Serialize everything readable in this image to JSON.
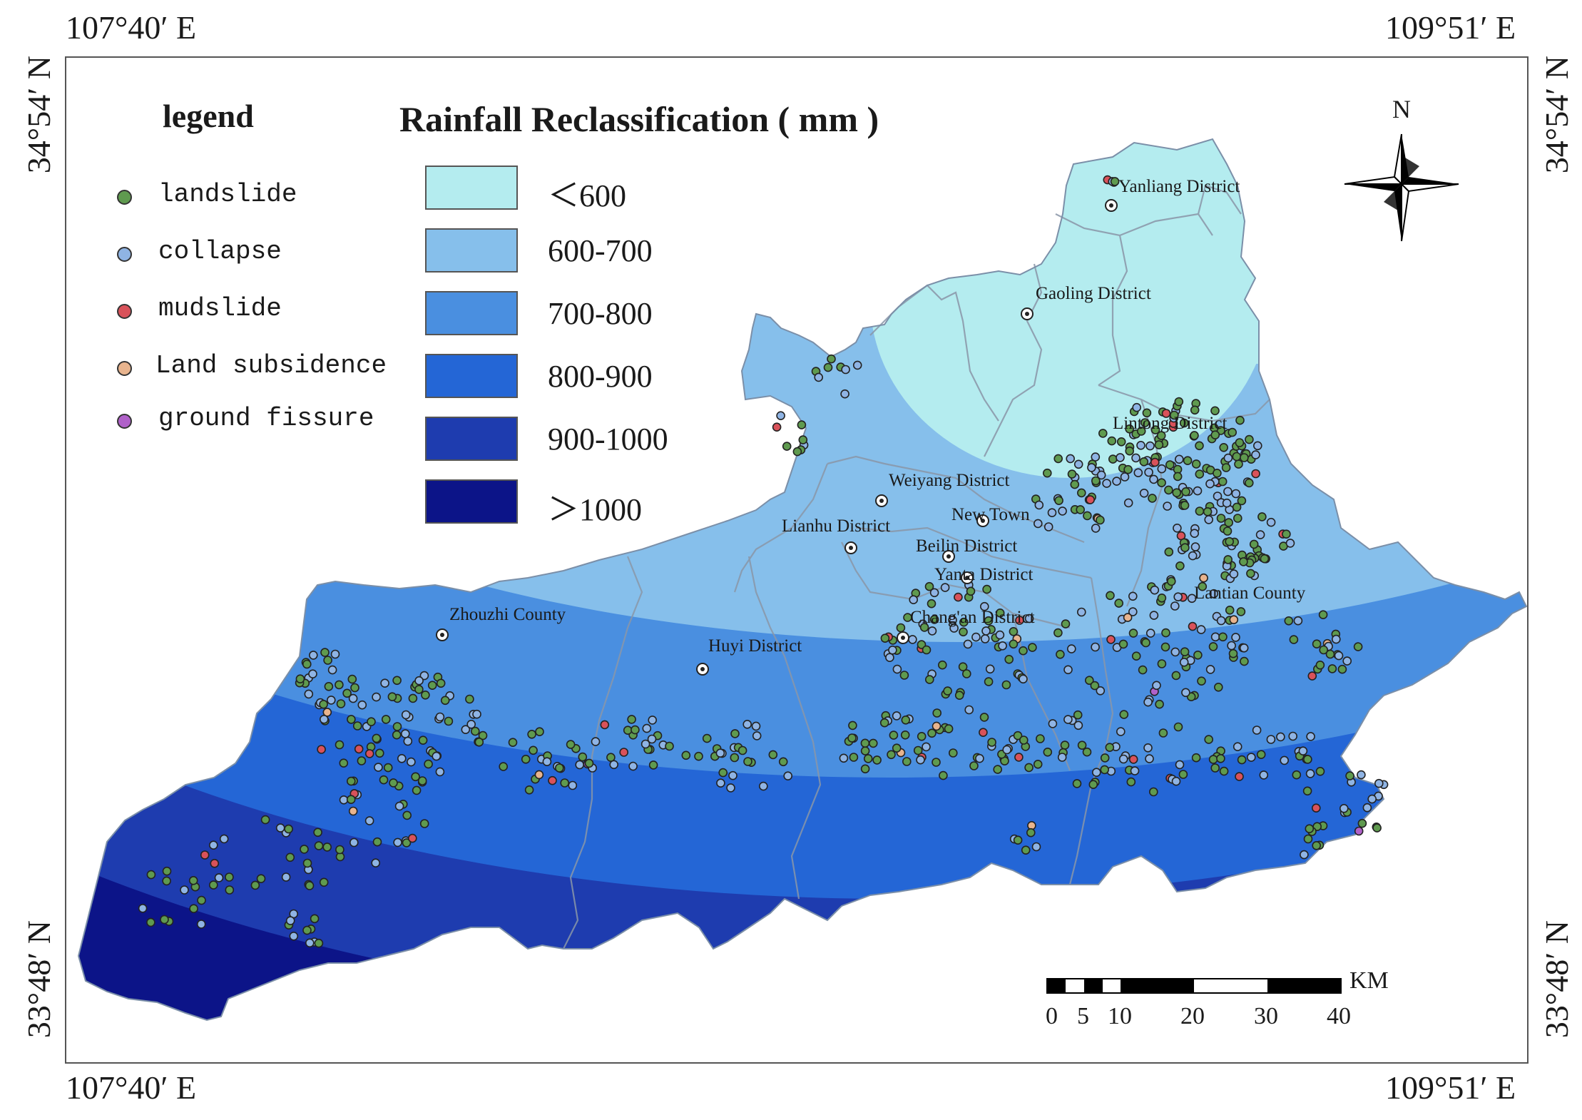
{
  "coords": {
    "top_left": "107°40′ E",
    "top_right": "109°51′ E",
    "bottom_left": "107°40′ E",
    "bottom_right": "109°51′ E",
    "left_top": "34°54′ N",
    "left_bottom": "33°48′ N",
    "right_top": "34°54′ N",
    "right_bottom": "33°48′ N"
  },
  "legend": {
    "title": "legend",
    "items": [
      {
        "label": "landslide",
        "color": "#5f9a4f"
      },
      {
        "label": "collapse",
        "color": "#8fb4e4"
      },
      {
        "label": "mudslide",
        "color": "#d9525a"
      },
      {
        "label": "Land subsidence",
        "color": "#e8b48e"
      },
      {
        "label": "ground fissure",
        "color": "#b061c9"
      }
    ]
  },
  "rainfall": {
    "title": "Rainfall Reclassification ( mm )",
    "classes": [
      {
        "label": "＜600",
        "color": "#b4ecef"
      },
      {
        "label": "600-700",
        "color": "#86bfeb"
      },
      {
        "label": "700-800",
        "color": "#4a8fe0"
      },
      {
        "label": "800-900",
        "color": "#2466d6"
      },
      {
        "label": "900-1000",
        "color": "#1e3caf"
      },
      {
        "label": "＞1000",
        "color": "#0c1488"
      }
    ]
  },
  "places": [
    "Yanliang District",
    "Gaoling District",
    "Lintong District",
    "Weiyang District",
    "New Town",
    "Lianhu District",
    "Beilin District",
    "Yanta District",
    "Lantian County",
    "Zhouzhi County",
    "Chang'an District",
    "Huyi District"
  ],
  "north_label": "N",
  "scale": {
    "unit": "KM",
    "ticks": [
      "0",
      "5",
      "10",
      "20",
      "30",
      "40"
    ]
  }
}
